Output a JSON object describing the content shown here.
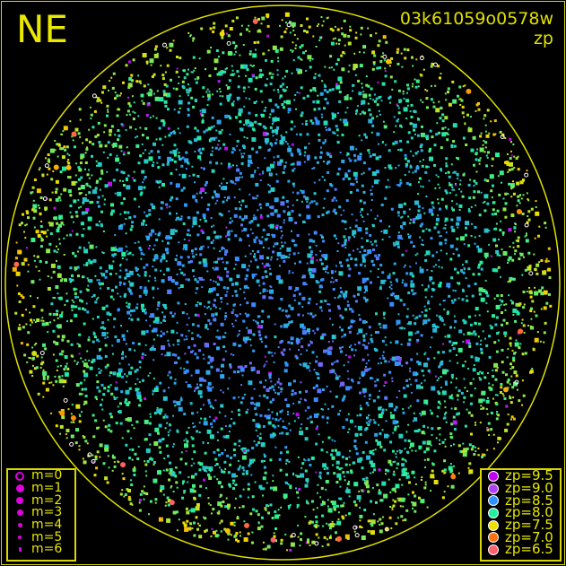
{
  "header": {
    "direction": "NE",
    "image_id": "03k61059o0578w",
    "quantity": "zp"
  },
  "chart_data": {
    "type": "scatter",
    "title": "03k61059o0578w",
    "subtitle": "zp",
    "projection": "all-sky circle",
    "background": "#000000",
    "circle_color": "#e0e000",
    "magnitude_legend": [
      {
        "label": "m=0",
        "hollow": true
      },
      {
        "label": "m=1"
      },
      {
        "label": "m=2"
      },
      {
        "label": "m=3"
      },
      {
        "label": "m=4"
      },
      {
        "label": "m=5"
      },
      {
        "label": "m=6"
      }
    ],
    "zp_legend": [
      {
        "label": "zp=9.5",
        "zp": 9.5,
        "color": "#c000f0"
      },
      {
        "label": "zp=9.0",
        "zp": 9.0,
        "color": "#b040f0"
      },
      {
        "label": "zp=8.5",
        "zp": 8.5,
        "color": "#3090ff"
      },
      {
        "label": "zp=8.0",
        "zp": 8.0,
        "color": "#20f0a0"
      },
      {
        "label": "zp=7.5",
        "zp": 7.5,
        "color": "#f0e000"
      },
      {
        "label": "zp=7.0",
        "zp": 7.0,
        "color": "#ff7010"
      },
      {
        "label": "zp=6.5",
        "zp": 6.5,
        "color": "#ff6070"
      }
    ],
    "legend_placement": [
      "bottom-left",
      "bottom-right"
    ],
    "grid": false
  }
}
